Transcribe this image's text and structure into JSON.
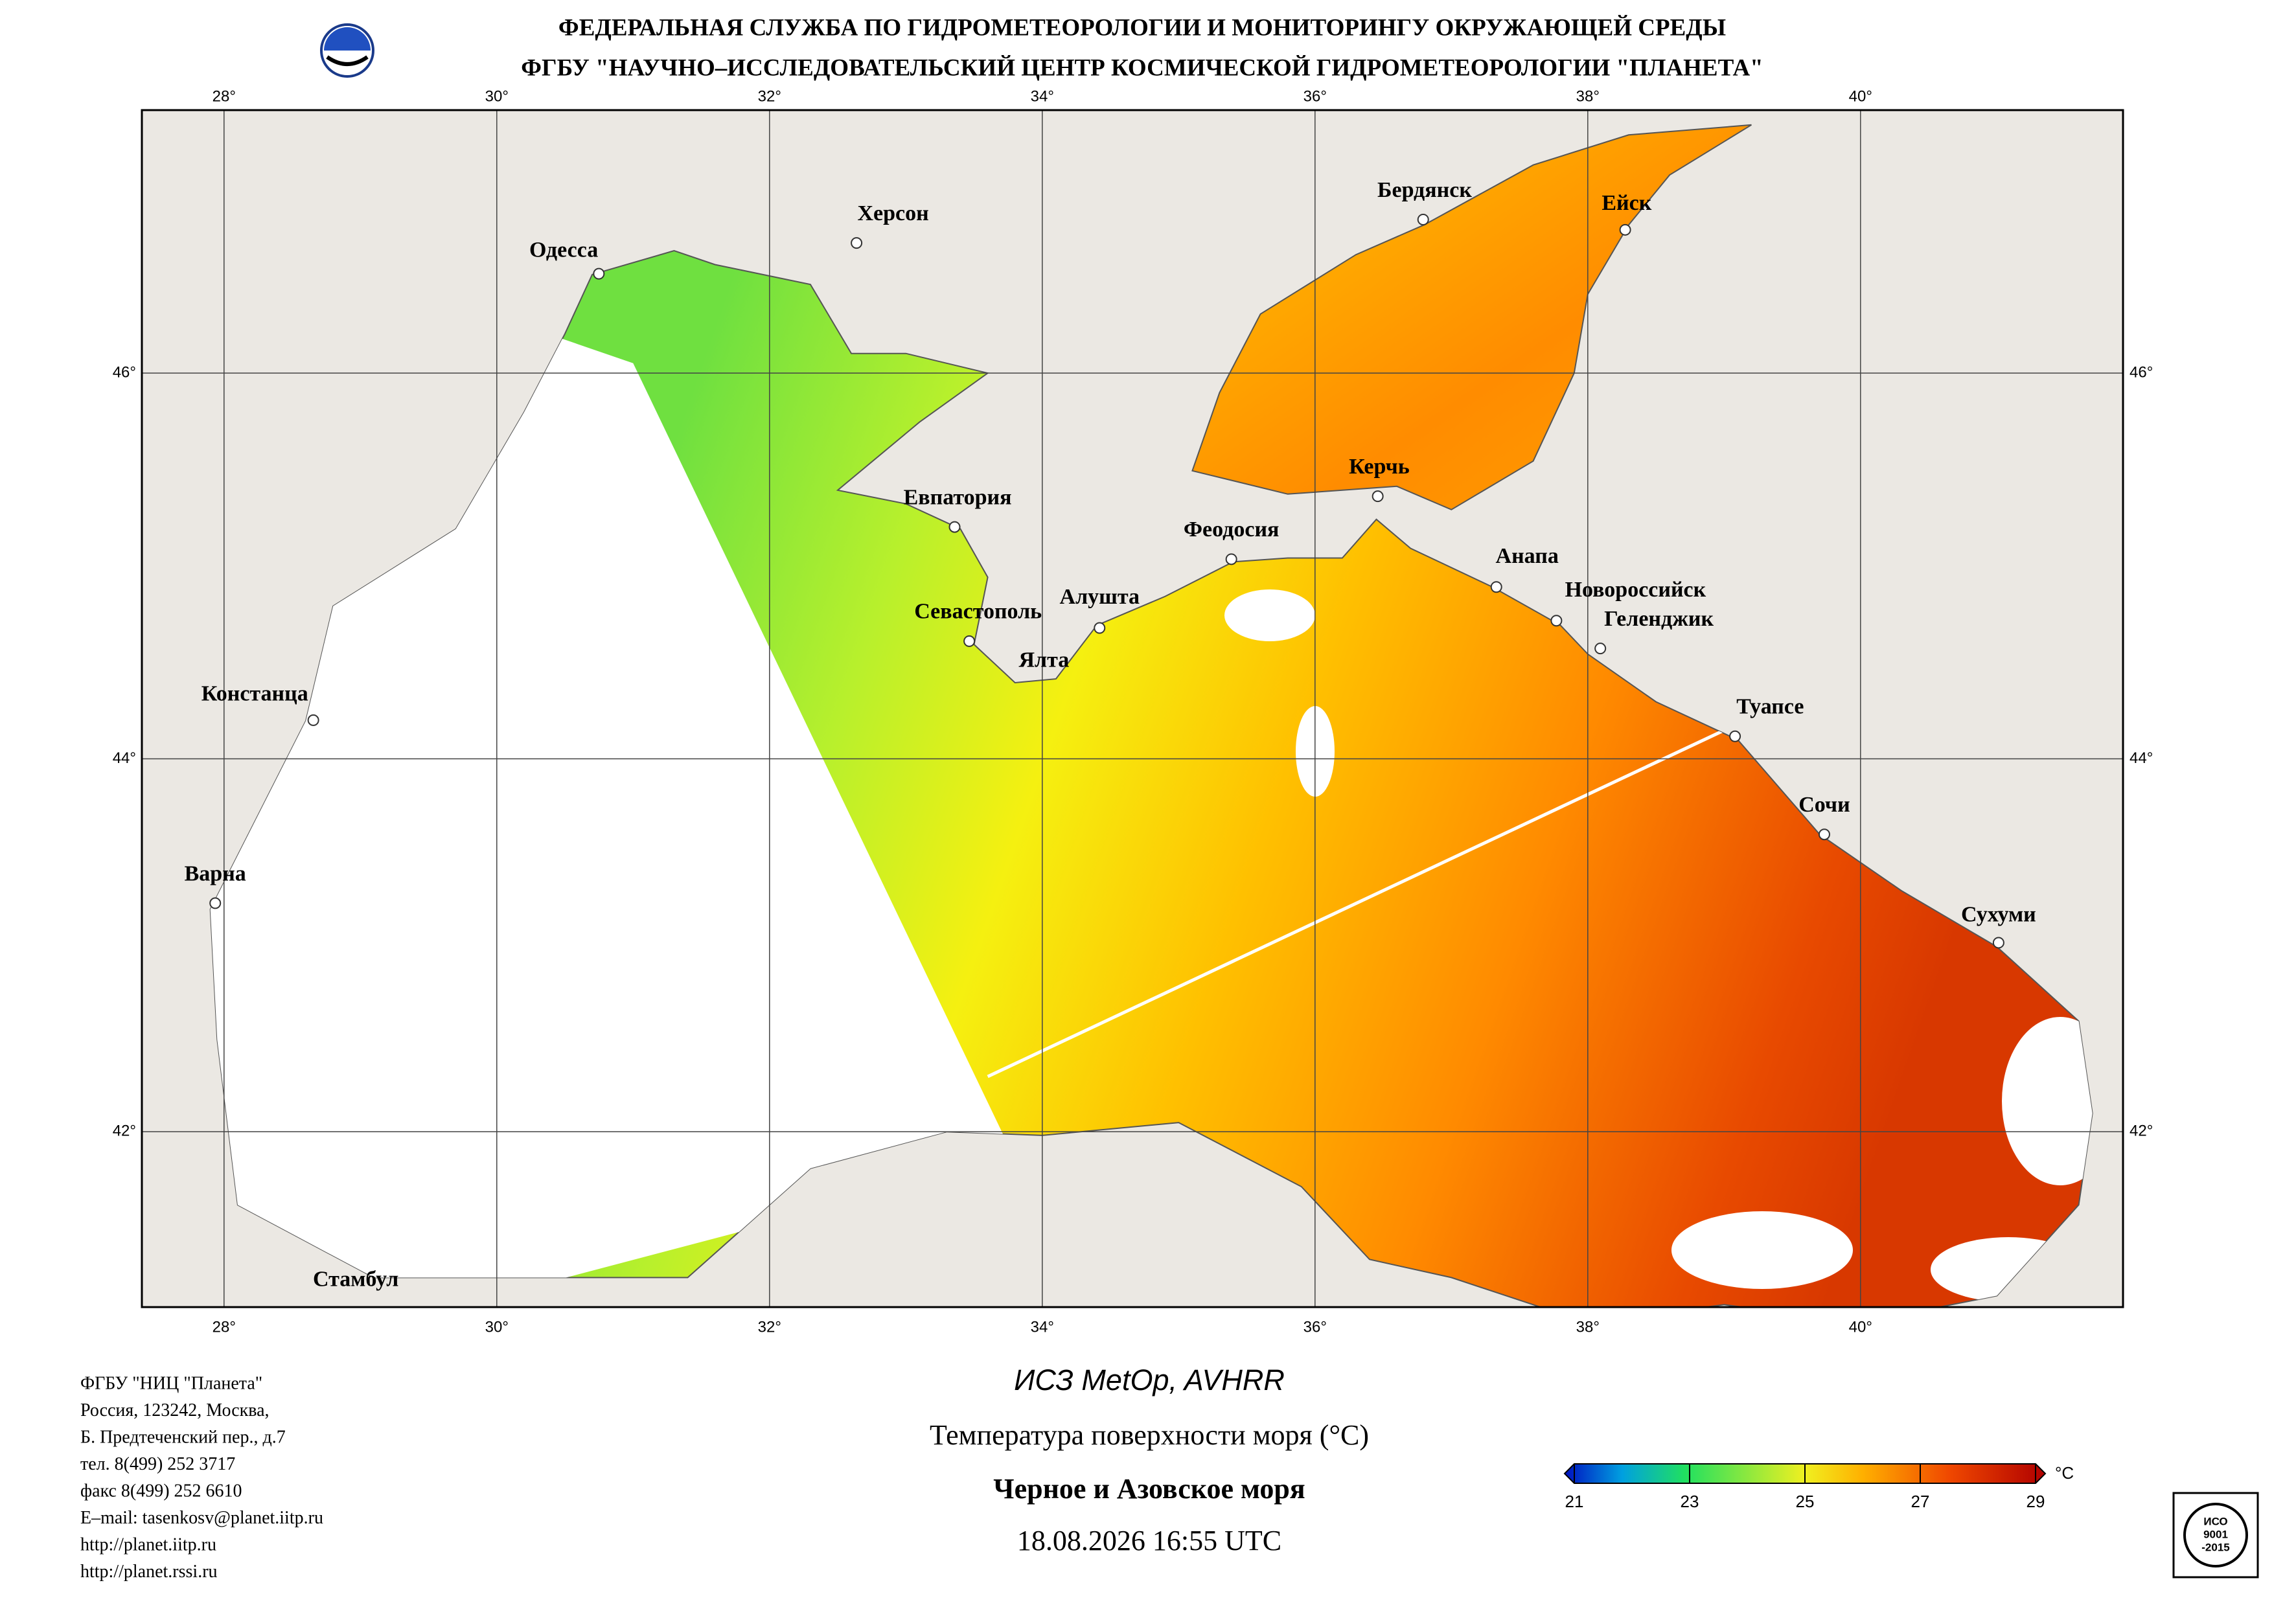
{
  "header": {
    "line1": "ФЕДЕРАЛЬНАЯ СЛУЖБА ПО ГИДРОМЕТЕОРОЛОГИИ И МОНИТОРИНГУ ОКРУЖАЮЩЕЙ СРЕДЫ",
    "line2": "ФГБУ \"НАУЧНО–ИССЛЕДОВАТЕЛЬСКИЙ ЦЕНТР КОСМИЧЕСКОЙ ГИДРОМЕТЕОРОЛОГИИ \"ПЛАНЕТА\""
  },
  "map": {
    "lon_ticks": [
      {
        "value": 28,
        "label": "28°"
      },
      {
        "value": 30,
        "label": "30°"
      },
      {
        "value": 32,
        "label": "32°"
      },
      {
        "value": 34,
        "label": "34°"
      },
      {
        "value": 36,
        "label": "36°"
      },
      {
        "value": 38,
        "label": "38°"
      },
      {
        "value": 40,
        "label": "40°"
      }
    ],
    "lat_ticks": [
      {
        "value": 42,
        "label": "42°"
      },
      {
        "value": 44,
        "label": "44°"
      },
      {
        "value": 46,
        "label": "46°"
      }
    ],
    "cities": [
      "Одесса",
      "Херсон",
      "Бердянск",
      "Ейск",
      "Евпатория",
      "Керчь",
      "Феодосия",
      "Анапа",
      "Новороссийск",
      "Геленджик",
      "Алушта",
      "Севастополь",
      "Ялта",
      "Констанца",
      "Туапсе",
      "Варна",
      "Сочи",
      "Сухуми",
      "Стамбул"
    ]
  },
  "colorbar": {
    "ticks": [
      21,
      23,
      25,
      27,
      29
    ],
    "unit": "°C"
  },
  "footer": {
    "org_lines": [
      "ФГБУ \"НИЦ \"Планета\"",
      "Россия, 123242, Москва,",
      "Б. Предтеченский пер., д.7",
      "тел. 8(499) 252 3717",
      "факс 8(499) 252 6610",
      "E–mail: tasenkosv@planet.iitp.ru",
      "http://planet.iitp.ru",
      "http://planet.rssi.ru"
    ],
    "satellite": "ИСЗ MetOp, AVHRR",
    "product": "Температура поверхности моря (°C)",
    "region": "Черное и Азовское моря",
    "datetime": "18.08.2026 16:55 UTC"
  },
  "iso": [
    "ИСО",
    "9001",
    "-2015"
  ]
}
